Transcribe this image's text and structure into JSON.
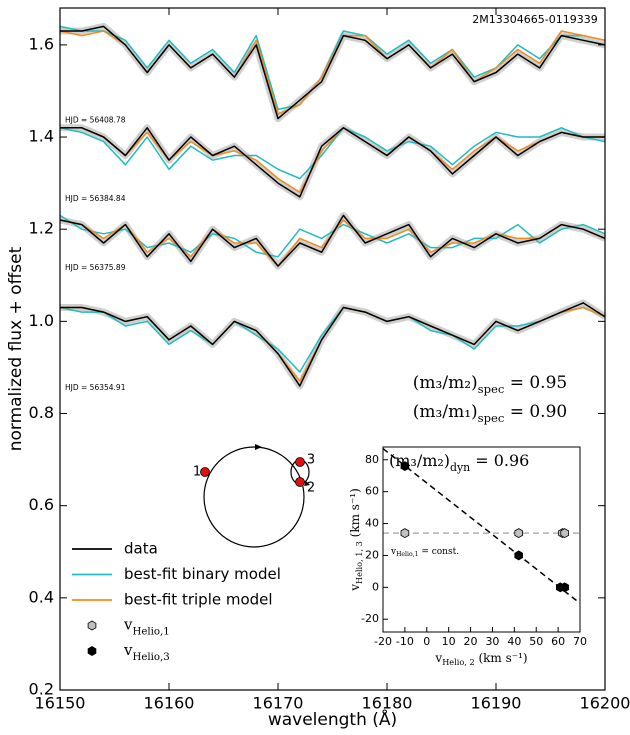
{
  "chart_data": [
    {
      "type": "line",
      "title": "2M13304665-0119339",
      "xlabel": "wavelength (Å)",
      "ylabel": "normalized flux + offset",
      "x": [
        16150,
        16152,
        16154,
        16156,
        16158,
        16160,
        16162,
        16164,
        16166,
        16168,
        16170,
        16172,
        16174,
        16176,
        16178,
        16180,
        16182,
        16184,
        16186,
        16188,
        16190,
        16192,
        16194,
        16196,
        16198,
        16200
      ],
      "xlim": [
        16150,
        16200
      ],
      "xticks": [
        16150,
        16160,
        16170,
        16180,
        16190,
        16200
      ],
      "ylim": [
        0.2,
        1.68
      ],
      "yticks": [
        0.2,
        0.4,
        0.6,
        0.8,
        {
          "value": 1,
          "label": "1.0"
        },
        1.2,
        1.4,
        1.6
      ],
      "epoch_labels": [
        "HJD = 56408.78",
        "HJD = 56384.84",
        "HJD = 56375.89",
        "HJD = 56354.91"
      ],
      "series": [
        {
          "name": "data",
          "color": "#000000",
          "values": [
            [
              1.63,
              1.63,
              1.64,
              1.6,
              1.54,
              1.6,
              1.55,
              1.58,
              1.53,
              1.6,
              1.44,
              1.48,
              1.52,
              1.62,
              1.61,
              1.57,
              1.6,
              1.55,
              1.58,
              1.52,
              1.54,
              1.58,
              1.55,
              1.62,
              1.61,
              1.6
            ],
            [
              1.42,
              1.42,
              1.4,
              1.36,
              1.42,
              1.35,
              1.4,
              1.36,
              1.38,
              1.34,
              1.3,
              1.27,
              1.38,
              1.42,
              1.39,
              1.36,
              1.4,
              1.37,
              1.32,
              1.36,
              1.4,
              1.36,
              1.39,
              1.41,
              1.4,
              1.4
            ],
            [
              1.22,
              1.21,
              1.17,
              1.21,
              1.14,
              1.19,
              1.13,
              1.2,
              1.16,
              1.18,
              1.12,
              1.17,
              1.15,
              1.23,
              1.17,
              1.19,
              1.21,
              1.14,
              1.18,
              1.16,
              1.19,
              1.17,
              1.18,
              1.21,
              1.2,
              1.18
            ],
            [
              1.03,
              1.03,
              1.02,
              1.0,
              1.01,
              0.96,
              0.99,
              0.95,
              1.0,
              0.98,
              0.93,
              0.86,
              0.96,
              1.03,
              1.02,
              1.0,
              1.01,
              0.99,
              0.97,
              0.95,
              1.0,
              0.98,
              1.0,
              1.02,
              1.04,
              1.01
            ]
          ]
        },
        {
          "name": "best-fit binary model",
          "color": "#1fbcc4",
          "values": [
            [
              1.64,
              1.63,
              1.63,
              1.61,
              1.55,
              1.61,
              1.56,
              1.59,
              1.54,
              1.62,
              1.46,
              1.47,
              1.53,
              1.63,
              1.62,
              1.58,
              1.61,
              1.56,
              1.59,
              1.53,
              1.55,
              1.6,
              1.57,
              1.62,
              1.62,
              1.61
            ],
            [
              1.42,
              1.41,
              1.39,
              1.34,
              1.4,
              1.33,
              1.38,
              1.35,
              1.36,
              1.36,
              1.33,
              1.31,
              1.36,
              1.42,
              1.4,
              1.37,
              1.39,
              1.38,
              1.34,
              1.38,
              1.41,
              1.4,
              1.4,
              1.42,
              1.4,
              1.39
            ],
            [
              1.23,
              1.2,
              1.19,
              1.2,
              1.16,
              1.17,
              1.15,
              1.19,
              1.18,
              1.15,
              1.14,
              1.2,
              1.18,
              1.21,
              1.19,
              1.17,
              1.19,
              1.16,
              1.16,
              1.18,
              1.18,
              1.21,
              1.17,
              1.2,
              1.21,
              1.19
            ],
            [
              1.03,
              1.02,
              1.02,
              0.99,
              1.0,
              0.95,
              0.98,
              0.95,
              1.0,
              0.97,
              0.94,
              0.89,
              0.97,
              1.03,
              1.02,
              1.0,
              1.01,
              0.98,
              0.97,
              0.94,
              0.99,
              0.99,
              1.0,
              1.02,
              1.03,
              1.01
            ]
          ]
        },
        {
          "name": "best-fit triple model",
          "color": "#f28a1e",
          "values": [
            [
              1.63,
              1.62,
              1.63,
              1.6,
              1.54,
              1.6,
              1.55,
              1.58,
              1.53,
              1.61,
              1.45,
              1.47,
              1.53,
              1.62,
              1.62,
              1.57,
              1.6,
              1.55,
              1.59,
              1.52,
              1.55,
              1.59,
              1.56,
              1.63,
              1.62,
              1.61
            ],
            [
              1.42,
              1.42,
              1.4,
              1.36,
              1.41,
              1.35,
              1.39,
              1.36,
              1.37,
              1.35,
              1.31,
              1.28,
              1.37,
              1.42,
              1.39,
              1.36,
              1.4,
              1.37,
              1.33,
              1.37,
              1.4,
              1.37,
              1.39,
              1.41,
              1.4,
              1.4
            ],
            [
              1.22,
              1.21,
              1.18,
              1.21,
              1.15,
              1.18,
              1.14,
              1.2,
              1.17,
              1.17,
              1.12,
              1.18,
              1.16,
              1.22,
              1.18,
              1.18,
              1.2,
              1.15,
              1.17,
              1.17,
              1.19,
              1.18,
              1.18,
              1.21,
              1.2,
              1.18
            ],
            [
              1.03,
              1.03,
              1.02,
              1.0,
              1.01,
              0.96,
              0.99,
              0.95,
              1.0,
              0.98,
              0.93,
              0.87,
              0.96,
              1.03,
              1.02,
              1.0,
              1.01,
              0.99,
              0.97,
              0.95,
              1.0,
              0.98,
              1.0,
              1.02,
              1.03,
              1.01
            ]
          ]
        }
      ],
      "annotations": [
        {
          "main": "(m₃/m₂)",
          "sub": "spec",
          "rest": " = 0.95"
        },
        {
          "main": "(m₃/m₁)",
          "sub": "spec",
          "rest": " = 0.90"
        }
      ],
      "orbit_labels": [
        "1",
        "2",
        "3"
      ],
      "legend": "lower left"
    },
    {
      "type": "scatter",
      "xlabel": {
        "main": "v",
        "sub": "Helio, 2",
        "rest": " (km s⁻¹)"
      },
      "ylabel": {
        "main": "v",
        "sub": "Helio, 1, 3",
        "rest": " (km s⁻¹)"
      },
      "annotation": {
        "main": "(m₃/m₂)",
        "sub": "dyn",
        "rest": " = 0.96"
      },
      "xlim": [
        -20,
        70
      ],
      "xticks": [
        -20,
        -10,
        0,
        10,
        20,
        30,
        40,
        50,
        60,
        70
      ],
      "ylim": [
        -28,
        88
      ],
      "yticks": [
        -20,
        0,
        20,
        40,
        60,
        80
      ],
      "series": [
        {
          "name": "v",
          "name_sub": "Helio,1",
          "color": "#c0c0c0",
          "x": [
            -10,
            42,
            62,
            63
          ],
          "values": [
            34,
            34,
            34,
            34
          ]
        },
        {
          "name": "v",
          "name_sub": "Helio,3",
          "color": "#000000",
          "x": [
            -10,
            42,
            61,
            63
          ],
          "values": [
            76,
            20,
            0,
            0
          ]
        }
      ],
      "trend_line": {
        "x": [
          -20,
          70
        ],
        "values": [
          87,
          -10
        ]
      },
      "reference_line": {
        "value": 34,
        "label": {
          "main": "v",
          "sub": "Helio,1",
          "rest": " = const."
        }
      }
    }
  ]
}
